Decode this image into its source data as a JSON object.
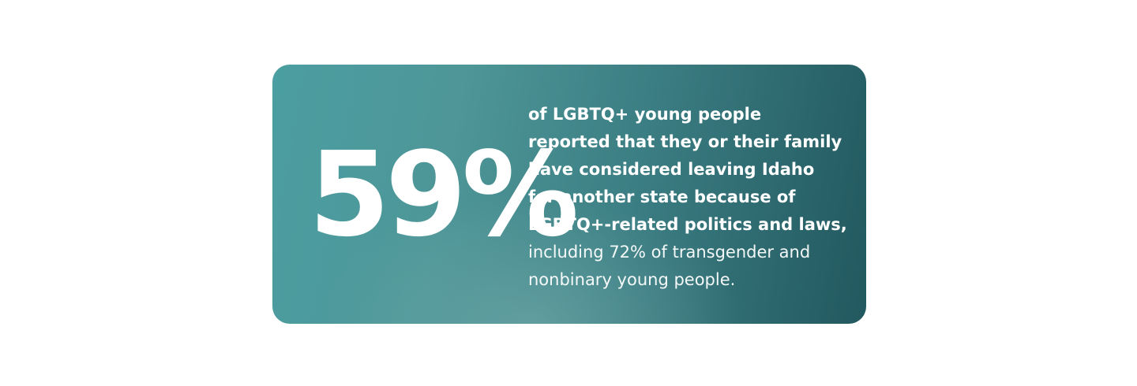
{
  "stat": "59%",
  "emphasis_lines": [
    "of LGBTQ+ young people",
    "reported that they or their family",
    "have considered leaving Idaho",
    "for another state because of",
    "LGBTQ+-related politics and laws,"
  ],
  "lines": [
    "including 72% of transgender and",
    "nonbinary young people."
  ]
}
